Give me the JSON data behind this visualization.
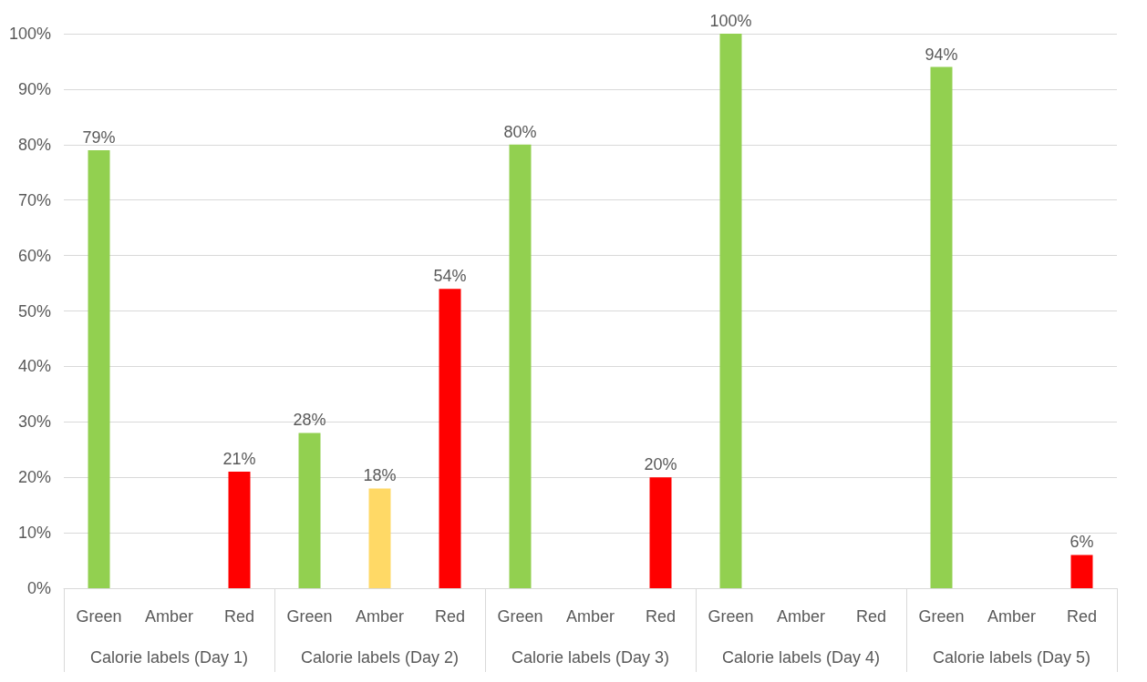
{
  "chart_data": {
    "type": "bar",
    "categories": [
      "Green",
      "Amber",
      "Red",
      "Green",
      "Amber",
      "Red",
      "Green",
      "Amber",
      "Red",
      "Green",
      "Amber",
      "Red",
      "Green",
      "Amber",
      "Red"
    ],
    "values": [
      79,
      null,
      21,
      28,
      18,
      54,
      80,
      null,
      20,
      100,
      null,
      null,
      94,
      null,
      6
    ],
    "colors": [
      "#92d050",
      "#ffd966",
      "#ff0000",
      "#92d050",
      "#ffd966",
      "#ff0000",
      "#92d050",
      "#ffd966",
      "#ff0000",
      "#92d050",
      "#ffd966",
      "#ff0000",
      "#92d050",
      "#ffd966",
      "#ff0000"
    ],
    "value_labels": [
      "79%",
      null,
      "21%",
      "28%",
      "18%",
      "54%",
      "80%",
      null,
      "20%",
      "100%",
      null,
      null,
      "94%",
      null,
      "6%"
    ],
    "annotations": [
      "Calorie labels (Day 1)",
      "Calorie labels (Day 2)",
      "Calorie labels (Day 3)",
      "Calorie labels (Day 4)",
      "Calorie labels (Day 5)"
    ],
    "ylim": [
      0,
      100
    ],
    "yticks": [
      {
        "value": 0,
        "label": "0%"
      },
      {
        "value": 10,
        "label": "10%"
      },
      {
        "value": 20,
        "label": "20%"
      },
      {
        "value": 30,
        "label": "30%"
      },
      {
        "value": 40,
        "label": "40%"
      },
      {
        "value": 50,
        "label": "50%"
      },
      {
        "value": 60,
        "label": "60%"
      },
      {
        "value": 70,
        "label": "70%"
      },
      {
        "value": 80,
        "label": "80%"
      },
      {
        "value": 90,
        "label": "90%"
      },
      {
        "value": 100,
        "label": "100%"
      }
    ],
    "grid": "y"
  }
}
